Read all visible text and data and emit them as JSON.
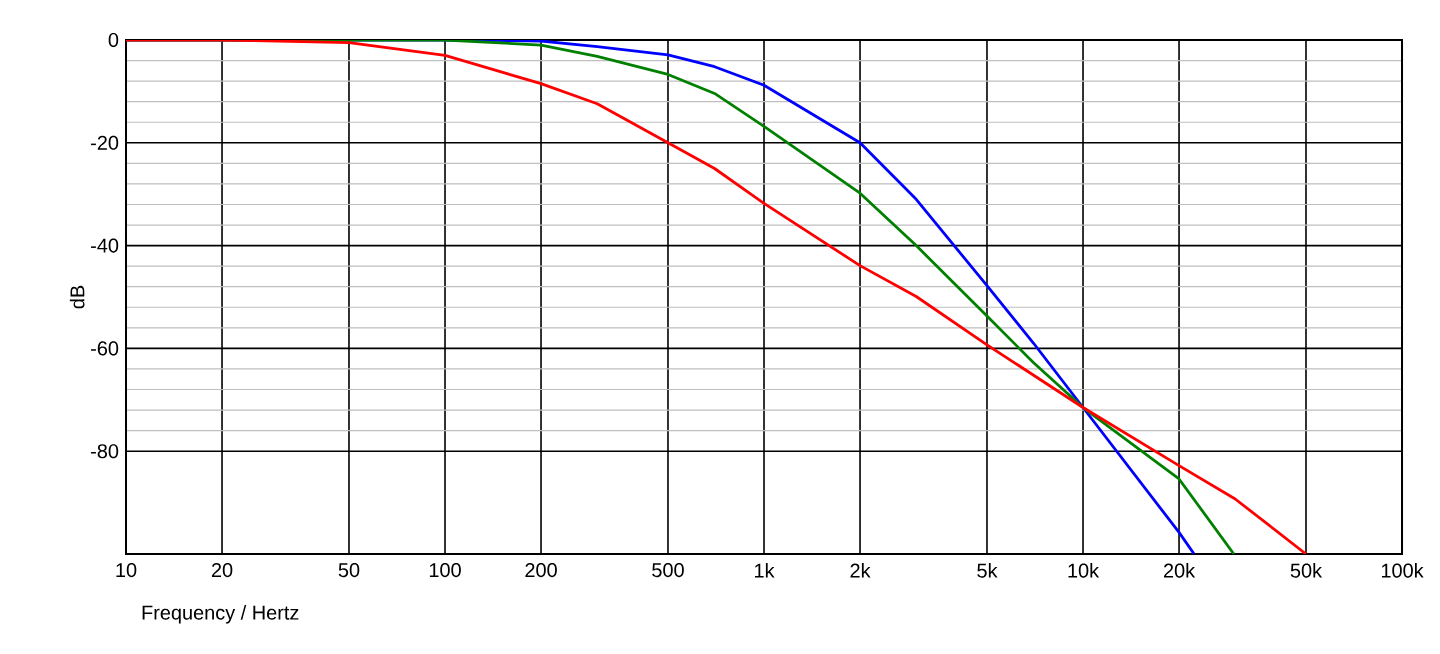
{
  "chart_data": {
    "type": "line",
    "xlabel": "Frequency / Hertz",
    "ylabel": "dB",
    "log": "x",
    "grid": true,
    "xlim": [
      10,
      100000
    ],
    "ylim": [
      -100,
      0
    ],
    "xticks": [
      10,
      20,
      50,
      100,
      200,
      500,
      {
        "value": 1000,
        "label": "1k"
      },
      {
        "value": 2000,
        "label": "2k"
      },
      {
        "value": 5000,
        "label": "5k"
      },
      {
        "value": 10000,
        "label": "10k"
      },
      {
        "value": 20000,
        "label": "20k"
      },
      {
        "value": 50000,
        "label": "50k"
      },
      {
        "value": 100000,
        "label": "100k"
      }
    ],
    "yticks": [
      -80,
      -60,
      -40,
      -20,
      0
    ],
    "series": [
      {
        "color": "#0000ff",
        "x": [
          10,
          50,
          100,
          200,
          300,
          500,
          700,
          1000,
          2000,
          3000,
          5000,
          7000,
          10000,
          20000,
          22300
        ],
        "values": [
          0,
          0,
          0,
          -0.2,
          -1.3,
          -2.9,
          -5.2,
          -8.8,
          -20,
          -31,
          -47.8,
          -59,
          -71.5,
          -95.8,
          -100
        ]
      },
      {
        "color": "#008000",
        "x": [
          10,
          50,
          100,
          200,
          300,
          500,
          700,
          1000,
          2000,
          3000,
          5000,
          7000,
          10000,
          20000,
          29700
        ],
        "values": [
          0,
          0,
          0,
          -1,
          -3.2,
          -6.7,
          -10.4,
          -16.8,
          -29.8,
          -40,
          -53.7,
          -62.8,
          -71.5,
          -85.4,
          -100
        ]
      },
      {
        "color": "#ff0000",
        "x": [
          10,
          20,
          50,
          100,
          200,
          300,
          500,
          700,
          1000,
          2000,
          3000,
          5000,
          10000,
          20000,
          30000,
          50000
        ],
        "values": [
          0,
          0,
          -0.5,
          -3,
          -8.5,
          -12.4,
          -20,
          -25,
          -31.8,
          -43.9,
          -49.9,
          -59.3,
          -71.5,
          -82.8,
          -89.3,
          -100
        ]
      }
    ]
  }
}
